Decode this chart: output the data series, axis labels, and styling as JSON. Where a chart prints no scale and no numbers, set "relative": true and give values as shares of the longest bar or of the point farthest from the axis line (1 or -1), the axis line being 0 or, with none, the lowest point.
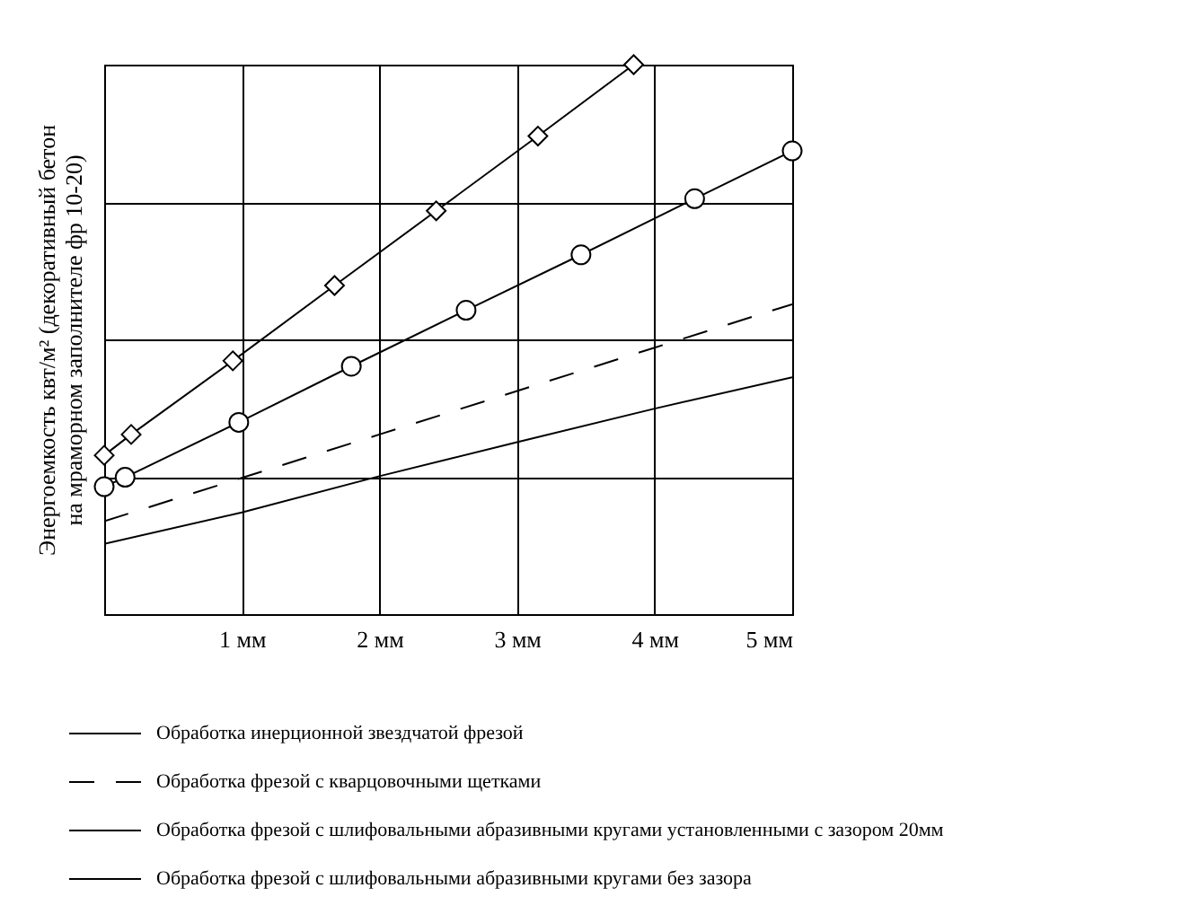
{
  "chart_data": {
    "type": "line",
    "relative": true,
    "ylabel": "Энергоемкость квт/м² (декоративный бетон на мраморном заполнителе фр 10-20)",
    "xlim": [
      0,
      5
    ],
    "xticks": [
      {
        "value": 1,
        "label": "1 мм"
      },
      {
        "value": 2,
        "label": "2 мм"
      },
      {
        "value": 3,
        "label": "3 мм"
      },
      {
        "value": 4,
        "label": "4 мм"
      },
      {
        "value": 5,
        "label": "5 мм"
      }
    ],
    "grid": true,
    "legend": "bottom",
    "series": [
      {
        "name": "Обработка инерционной звездчатой фрезой",
        "color": "#000000",
        "line_style": "solid",
        "marker": "none",
        "x": [
          0,
          1,
          2,
          3,
          4,
          5
        ],
        "values": [
          0.128,
          0.185,
          0.251,
          0.313,
          0.374,
          0.431
        ]
      },
      {
        "name": "Обработка фрезой с кварцовочными щетками",
        "color": "#000000",
        "line_style": "dashed",
        "marker": "none",
        "x": [
          0,
          1,
          2,
          3,
          4,
          5
        ],
        "values": [
          0.169,
          0.248,
          0.327,
          0.406,
          0.485,
          0.564
        ]
      },
      {
        "name": "Обработка фрезой с шлифовальными абразивными кругами установленными с зазором 20мм",
        "color": "#000000",
        "line_style": "solid",
        "marker": "circle",
        "x": [
          0,
          0.152,
          0.978,
          1.796,
          2.63,
          3.465,
          4.291,
          5
        ],
        "values": [
          0.232,
          0.249,
          0.349,
          0.451,
          0.553,
          0.654,
          0.756,
          0.843
        ]
      },
      {
        "name": "Обработка фрезой с шлифовальными абразивными кругами без зазора",
        "color": "#000000",
        "line_style": "solid",
        "marker": "diamond",
        "x": [
          0,
          0.196,
          0.935,
          1.674,
          2.413,
          3.152,
          3.848
        ],
        "values": [
          0.289,
          0.327,
          0.461,
          0.598,
          0.734,
          0.87,
          1
        ]
      }
    ]
  }
}
